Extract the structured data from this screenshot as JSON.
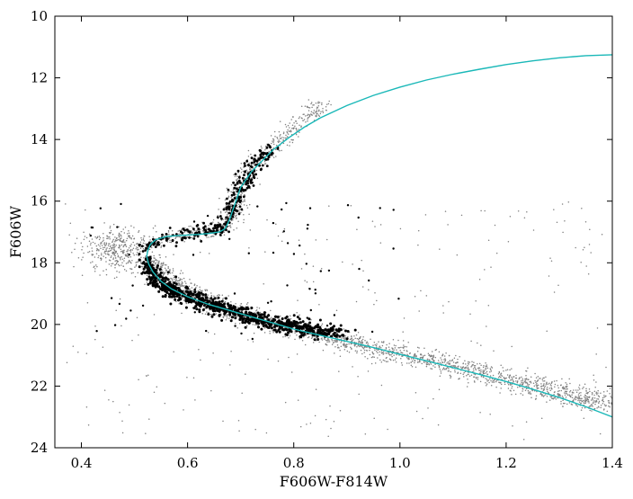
{
  "chart_data": {
    "type": "scatter",
    "title": "",
    "xlabel": "F606W-F814W",
    "ylabel": "F606W",
    "xlim": [
      0.35,
      1.4
    ],
    "ylim": [
      24,
      10
    ],
    "y_inverted": true,
    "x_ticks": [
      "0.4",
      "0.6",
      "0.8",
      "1.0",
      "1.2",
      "1.4"
    ],
    "y_ticks": [
      "10",
      "12",
      "14",
      "16",
      "18",
      "20",
      "22",
      "24"
    ],
    "x_tick_values": [
      0.4,
      0.6,
      0.8,
      1.0,
      1.2,
      1.4
    ],
    "y_tick_values": [
      10,
      12,
      14,
      16,
      18,
      20,
      22,
      24
    ],
    "grid": false,
    "legend": "none",
    "series": [
      {
        "kind": "scatter",
        "style": "all stars (small grey points)",
        "color": "#808080",
        "ridge": {
          "x": [
            0.53,
            0.56,
            0.6,
            0.64,
            0.7,
            0.8,
            0.9,
            1.0,
            1.1,
            1.2,
            1.3,
            1.4
          ],
          "y": [
            17.8,
            18.5,
            18.95,
            19.3,
            19.65,
            20.15,
            20.55,
            20.95,
            21.35,
            21.75,
            22.2,
            22.7
          ]
        },
        "branch": {
          "x": [
            0.53,
            0.58,
            0.63,
            0.66,
            0.68,
            0.69,
            0.7,
            0.72,
            0.75,
            0.78,
            0.82,
            0.86
          ],
          "y": [
            17.4,
            17.1,
            17.0,
            16.9,
            16.5,
            16.0,
            15.4,
            14.9,
            14.4,
            13.9,
            13.3,
            12.8
          ]
        }
      },
      {
        "kind": "scatter",
        "style": "selected stars (black points)",
        "color": "#000000",
        "ridge": {
          "x": [
            0.52,
            0.54,
            0.57,
            0.6,
            0.64,
            0.68,
            0.72,
            0.76,
            0.8,
            0.85,
            0.88
          ],
          "y": [
            17.9,
            18.5,
            18.9,
            19.1,
            19.35,
            19.55,
            19.75,
            19.95,
            20.05,
            20.2,
            20.3
          ]
        },
        "branch": {
          "x": [
            0.52,
            0.56,
            0.6,
            0.64,
            0.66,
            0.68,
            0.69,
            0.7,
            0.72,
            0.74,
            0.76
          ],
          "y": [
            17.5,
            17.25,
            17.05,
            16.95,
            16.85,
            16.5,
            16.0,
            15.5,
            15.0,
            14.6,
            14.3
          ]
        }
      },
      {
        "kind": "line",
        "style": "isochrone",
        "color": "#1ab8b8",
        "x": [
          1.4,
          1.35,
          1.3,
          1.25,
          1.2,
          1.15,
          1.1,
          1.05,
          1.0,
          0.95,
          0.9,
          0.85,
          0.82,
          0.79,
          0.76,
          0.74,
          0.72,
          0.71,
          0.7,
          0.695,
          0.69,
          0.685,
          0.68,
          0.675,
          0.67,
          0.66,
          0.64,
          0.62,
          0.6,
          0.58,
          0.56,
          0.54,
          0.53,
          0.525,
          0.523,
          0.527,
          0.535,
          0.55,
          0.57,
          0.6,
          0.64,
          0.68,
          0.72,
          0.76,
          0.8,
          0.85,
          0.9,
          0.95,
          1.0,
          1.05,
          1.1,
          1.15,
          1.2,
          1.25,
          1.3,
          1.35,
          1.4
        ],
        "y": [
          11.25,
          11.28,
          11.35,
          11.45,
          11.57,
          11.72,
          11.88,
          12.07,
          12.3,
          12.57,
          12.9,
          13.3,
          13.6,
          13.95,
          14.35,
          14.7,
          15.05,
          15.3,
          15.55,
          15.8,
          16.05,
          16.3,
          16.55,
          16.75,
          16.9,
          17.0,
          17.05,
          17.08,
          17.1,
          17.12,
          17.15,
          17.25,
          17.4,
          17.6,
          17.8,
          18.05,
          18.3,
          18.6,
          18.85,
          19.1,
          19.35,
          19.55,
          19.75,
          19.95,
          20.15,
          20.35,
          20.55,
          20.75,
          20.97,
          21.18,
          21.4,
          21.62,
          21.85,
          22.1,
          22.37,
          22.67,
          23.0
        ]
      }
    ]
  }
}
